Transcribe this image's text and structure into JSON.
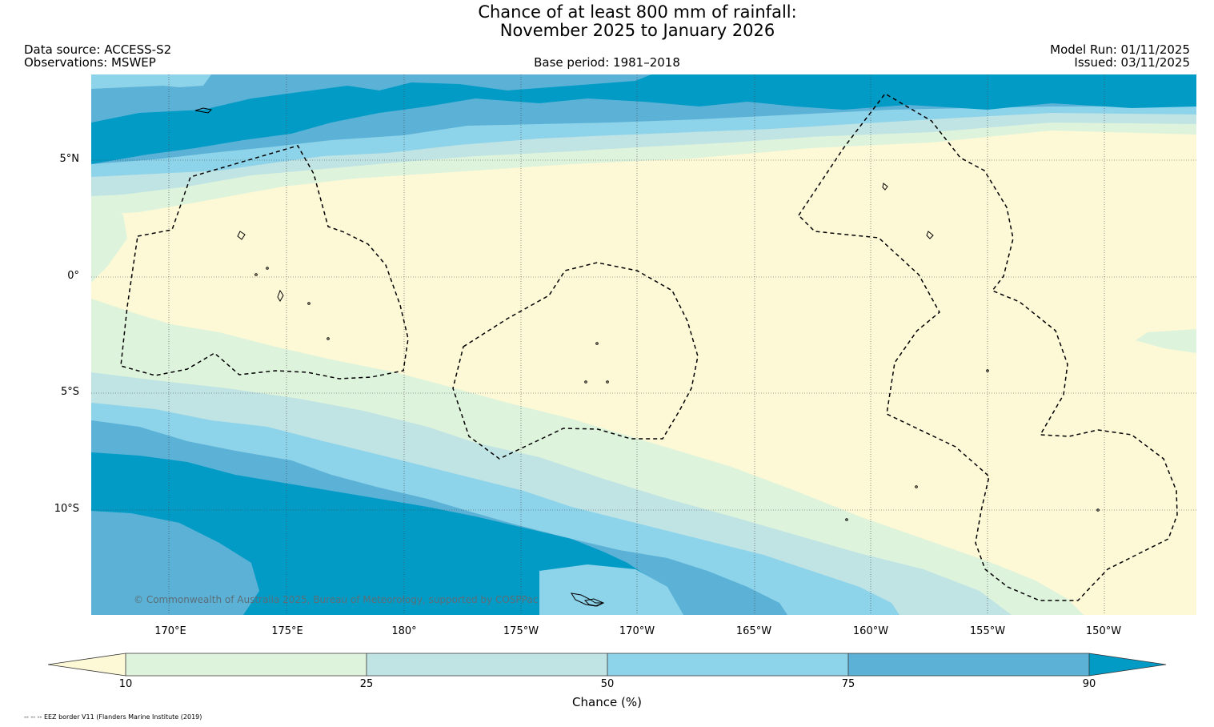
{
  "title": {
    "line1": "Chance of at least 800 mm of rainfall:",
    "line2": "November 2025 to January 2026"
  },
  "header": {
    "data_source": "Data source: ACCESS-S2",
    "observations": "Observations: MSWEP",
    "base_period": "Base period: 1981–2018",
    "model_run": "Model Run: 01/11/2025",
    "issued": "Issued: 03/11/2025"
  },
  "map": {
    "latitude_labels": [
      "5°N",
      "0°",
      "5°S",
      "10°S"
    ],
    "longitude_labels": [
      "170°E",
      "175°E",
      "180°",
      "175°W",
      "170°W",
      "165°W",
      "160°W",
      "155°W",
      "150°W"
    ],
    "credit": "© Commonwealth of Australia 2025, Bureau of Meteorology, supported by COSPPac"
  },
  "legend": {
    "label": "Chance (%)",
    "ticks": [
      "10",
      "25",
      "50",
      "75",
      "90"
    ],
    "colors": [
      "#fdf9d6",
      "#def3dc",
      "#c0e3e4",
      "#8dd3ea",
      "#5cb2d6",
      "#029bc6"
    ]
  },
  "footer": "-- -- -- EEZ border V11 (Flanders Marine Institute (2019)"
}
